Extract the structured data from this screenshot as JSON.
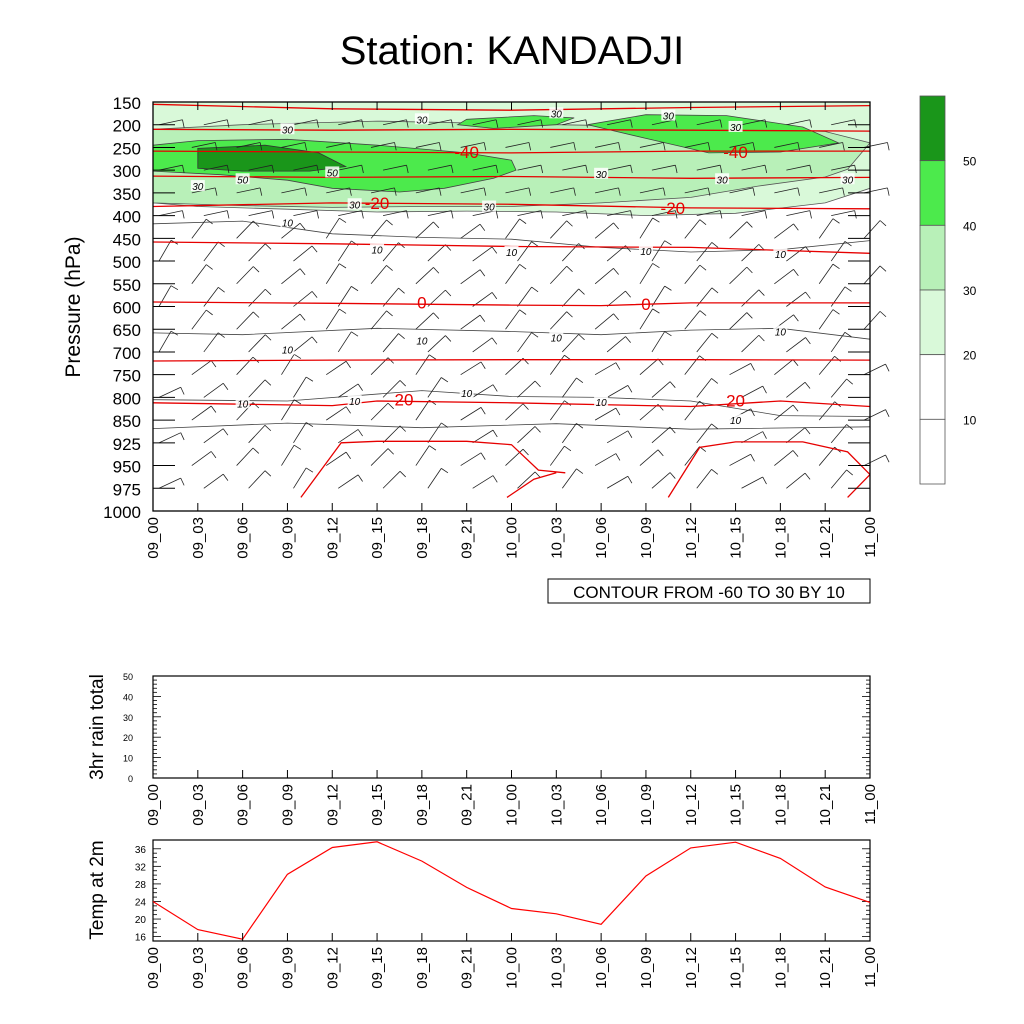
{
  "title": "Station: KANDADJI",
  "time_labels": [
    "09_00",
    "09_03",
    "09_06",
    "09_09",
    "09_12",
    "09_15",
    "09_18",
    "09_21",
    "10_00",
    "10_03",
    "10_06",
    "10_09",
    "10_12",
    "10_15",
    "10_18",
    "10_21",
    "11_00"
  ],
  "chart_data": [
    {
      "type": "contour",
      "name": "upper-air cross-section",
      "ylabel": "Pressure (hPa)",
      "pressure_levels": [
        150,
        200,
        250,
        300,
        350,
        400,
        450,
        500,
        550,
        600,
        650,
        700,
        750,
        800,
        850,
        925,
        950,
        975,
        1000
      ],
      "y_inverted": true,
      "x_categories_ref": "time_labels",
      "shaded_field": {
        "levels": [
          10,
          20,
          30,
          40,
          50
        ],
        "colors": [
          "#ffffff",
          "#ffffff",
          "#d9f9d9",
          "#b8f0b8",
          "#4cea4c",
          "#1a961a"
        ],
        "contour_labels": [
          "10",
          "30",
          "50"
        ]
      },
      "temperature_contours": {
        "color": "#ff0000",
        "labels": [
          {
            "text": "-40",
            "time": 7.0,
            "p": 260
          },
          {
            "text": "-40",
            "time": 13.0,
            "p": 260
          },
          {
            "text": "-20",
            "time": 5.0,
            "p": 372
          },
          {
            "text": "-20",
            "time": 11.6,
            "p": 383
          },
          {
            "text": "0",
            "time": 6.0,
            "p": 591
          },
          {
            "text": "0",
            "time": 11.0,
            "p": 595
          },
          {
            "text": "20",
            "time": 5.6,
            "p": 805
          },
          {
            "text": "20",
            "time": 13.0,
            "p": 807
          }
        ],
        "contours": [
          {
            "level": -60,
            "points": [
              [
                0,
                155
              ],
              [
                4,
                165
              ],
              [
                8,
                168
              ],
              [
                12,
                162
              ],
              [
                16,
                158
              ]
            ]
          },
          {
            "level": -50,
            "points": [
              [
                0,
                210
              ],
              [
                4,
                212
              ],
              [
                8,
                210
              ],
              [
                12,
                212
              ],
              [
                16,
                214
              ]
            ]
          },
          {
            "level": -40,
            "points": [
              [
                0,
                258
              ],
              [
                4,
                260
              ],
              [
                8,
                262
              ],
              [
                12,
                258
              ],
              [
                16,
                258
              ]
            ]
          },
          {
            "level": -30,
            "points": [
              [
                0,
                313
              ],
              [
                4,
                316
              ],
              [
                8,
                314
              ],
              [
                12,
                318
              ],
              [
                16,
                316
              ]
            ]
          },
          {
            "level": -20,
            "points": [
              [
                0,
                380
              ],
              [
                4,
                372
              ],
              [
                8,
                375
              ],
              [
                12,
                383
              ],
              [
                16,
                385
              ]
            ]
          },
          {
            "level": -10,
            "points": [
              [
                0,
                458
              ],
              [
                4,
                462
              ],
              [
                8,
                468
              ],
              [
                12,
                470
              ],
              [
                16,
                483
              ]
            ]
          },
          {
            "level": 0,
            "points": [
              [
                0,
                590
              ],
              [
                4,
                593
              ],
              [
                8,
                597
              ],
              [
                10,
                598
              ],
              [
                12,
                592
              ],
              [
                16,
                592
              ]
            ]
          },
          {
            "level": 10,
            "points": [
              [
                0,
                720
              ],
              [
                4,
                718
              ],
              [
                8,
                717
              ],
              [
                12,
                717
              ],
              [
                16,
                718
              ]
            ]
          },
          {
            "level": 20,
            "points": [
              [
                0,
                812
              ],
              [
                2,
                815
              ],
              [
                4,
                818
              ],
              [
                5,
                808
              ],
              [
                8,
                812
              ],
              [
                12,
                820
              ],
              [
                14,
                808
              ],
              [
                16,
                820
              ]
            ]
          }
        ],
        "near_surface": [
          [
            [
              3.3,
              985
            ],
            [
              4.2,
              925
            ],
            [
              5,
              920
            ],
            [
              7,
              920
            ],
            [
              8,
              927
            ],
            [
              8.6,
              955
            ],
            [
              9.2,
              958
            ]
          ],
          [
            [
              7.9,
              985
            ],
            [
              8.5,
              965
            ],
            [
              9.0,
              958
            ]
          ],
          [
            [
              11.5,
              985
            ],
            [
              12.2,
              930
            ],
            [
              13,
              922
            ],
            [
              14.5,
              922
            ],
            [
              15.5,
              935
            ],
            [
              16,
              960
            ]
          ],
          [
            [
              15.5,
              985
            ],
            [
              16,
              960
            ]
          ]
        ]
      },
      "annotation": "CONTOUR FROM -60 TO 30 BY 10"
    },
    {
      "type": "line",
      "name": "3hr rain total",
      "ylabel": "3hr rain total",
      "ylim": [
        0,
        50
      ],
      "yticks": [
        0,
        10,
        20,
        30,
        40,
        50
      ],
      "x_categories_ref": "time_labels",
      "series": [
        {
          "values": []
        }
      ]
    },
    {
      "type": "line",
      "name": "Temp at 2m",
      "ylabel": "Temp at 2m",
      "ylim": [
        15,
        38
      ],
      "yticks": [
        16,
        20,
        24,
        28,
        32,
        36
      ],
      "x_categories_ref": "time_labels",
      "series": [
        {
          "color": "#ff0000",
          "values": [
            24.0,
            17.6,
            15.4,
            30.2,
            36.3,
            37.6,
            33.2,
            27.2,
            22.4,
            21.2,
            18.8,
            29.8,
            36.2,
            37.5,
            33.8,
            27.3,
            23.8
          ]
        }
      ]
    }
  ]
}
